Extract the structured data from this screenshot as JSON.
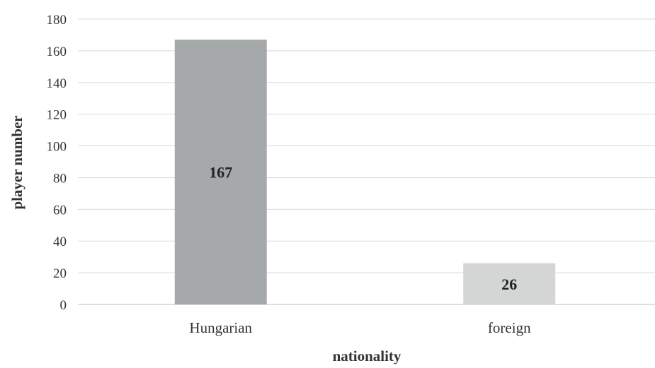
{
  "chart_data": {
    "type": "bar",
    "title": "",
    "xlabel": "nationality",
    "ylabel": "player number",
    "categories": [
      "Hungarian",
      "foreign"
    ],
    "values": [
      167,
      26
    ],
    "data_labels": [
      "167",
      "26"
    ],
    "bar_colors": [
      "#a6a9aa",
      "#d4d5d5"
    ],
    "ylim": [
      0,
      180
    ],
    "yticks": [
      0,
      20,
      40,
      60,
      80,
      100,
      120,
      140,
      160,
      180
    ],
    "grid": true,
    "grid_color": "#d9d9d9",
    "legend": "none"
  }
}
